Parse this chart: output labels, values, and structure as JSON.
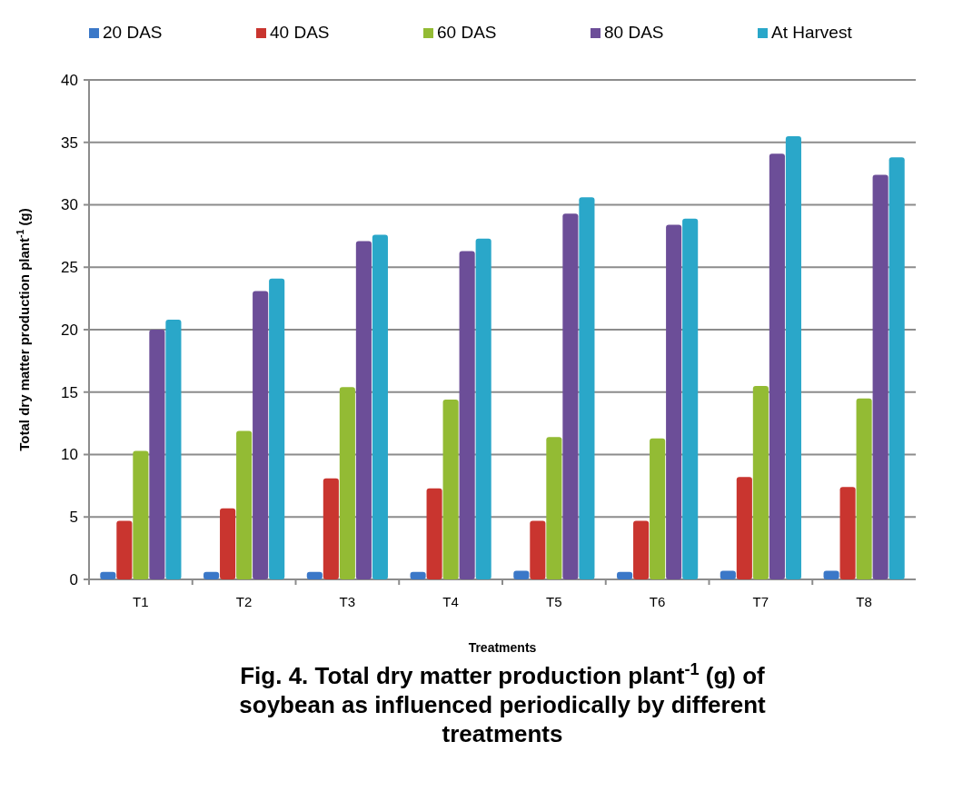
{
  "chart_data": {
    "type": "bar",
    "title": "Fig. 4.  Total dry matter production plant$^{-1}$ (g) of soybean as influenced periodically by different treatments",
    "xlabel": "Treatments",
    "ylabel": "Total dry matter production plant$^{-1}$ (g)",
    "categories": [
      "T1",
      "T2",
      "T3",
      "T4",
      "T5",
      "T6",
      "T7",
      "T8"
    ],
    "series": [
      {
        "name": "20 DAS",
        "color": "#3b78c8",
        "values": [
          0.6,
          0.6,
          0.6,
          0.6,
          0.7,
          0.6,
          0.7,
          0.7
        ]
      },
      {
        "name": "40 DAS",
        "color": "#c9352f",
        "values": [
          4.7,
          5.7,
          8.1,
          7.3,
          4.7,
          4.7,
          8.2,
          7.4
        ]
      },
      {
        "name": "60 DAS",
        "color": "#93bb34",
        "values": [
          10.3,
          11.9,
          15.4,
          14.4,
          11.4,
          11.3,
          15.5,
          14.5
        ]
      },
      {
        "name": "80 DAS",
        "color": "#6c4e98",
        "values": [
          20.0,
          23.1,
          27.1,
          26.3,
          29.3,
          28.4,
          34.1,
          32.4
        ]
      },
      {
        "name": "At Harvest",
        "color": "#2aa7c9",
        "values": [
          20.8,
          24.1,
          27.6,
          27.3,
          30.6,
          28.9,
          35.5,
          33.8
        ]
      }
    ],
    "ylim": [
      0,
      40
    ],
    "yticks": [
      0,
      5,
      10,
      15,
      20,
      25,
      30,
      35,
      40
    ],
    "grid": "y",
    "legend": "top"
  }
}
